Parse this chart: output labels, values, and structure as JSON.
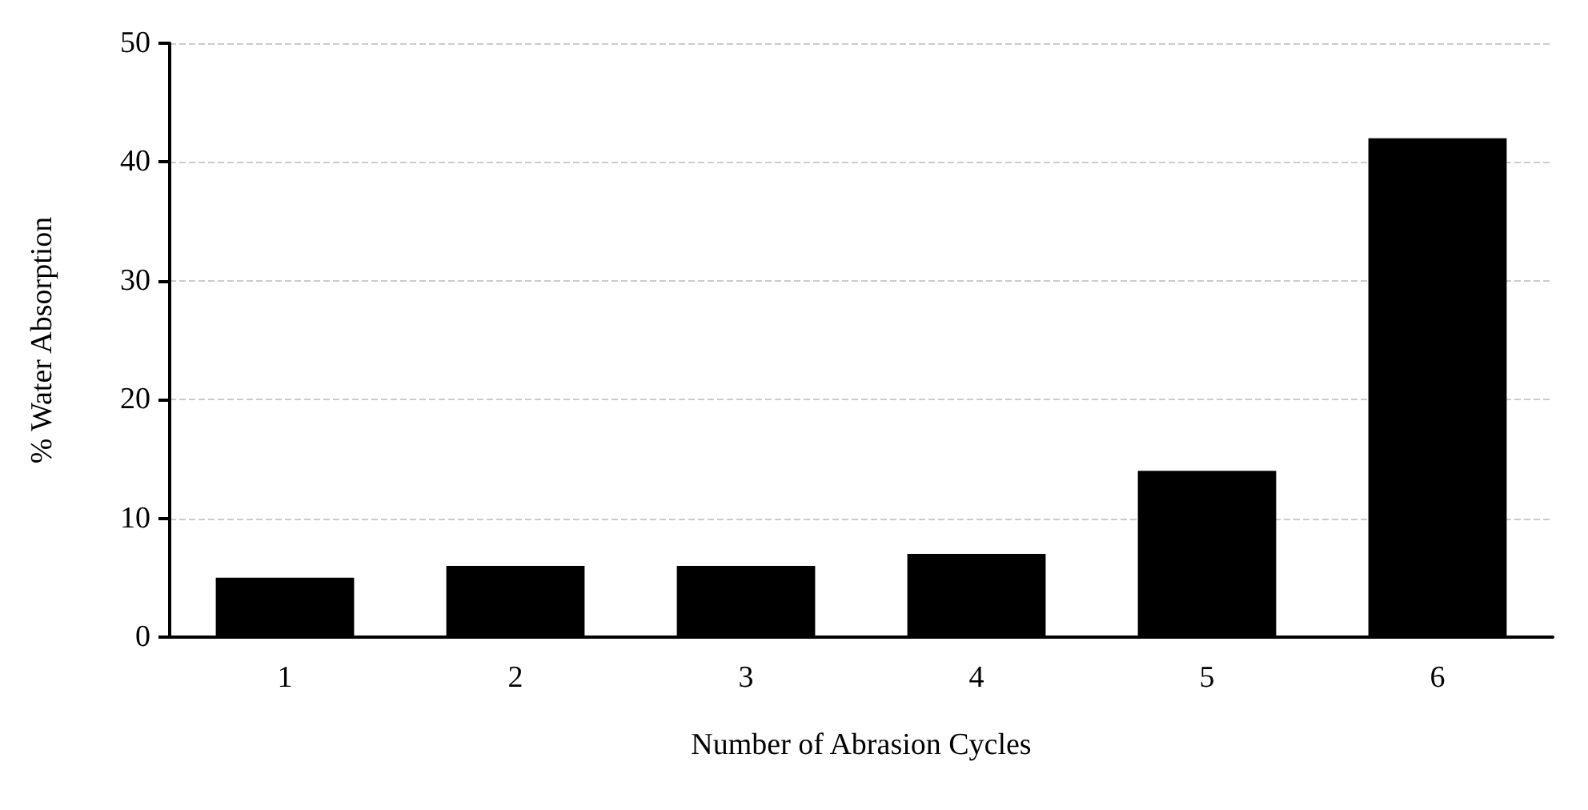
{
  "chart_data": {
    "type": "bar",
    "xlabel": "Number of Abrasion Cycles",
    "ylabel": "% Water Absorption",
    "categories": [
      "1",
      "2",
      "3",
      "4",
      "5",
      "6"
    ],
    "values": [
      5,
      6,
      6,
      7,
      14,
      42
    ],
    "color": "#000000",
    "ylim": [
      0,
      50
    ],
    "yticks": [
      0,
      10,
      20,
      30,
      40,
      50
    ],
    "grid": "y"
  }
}
